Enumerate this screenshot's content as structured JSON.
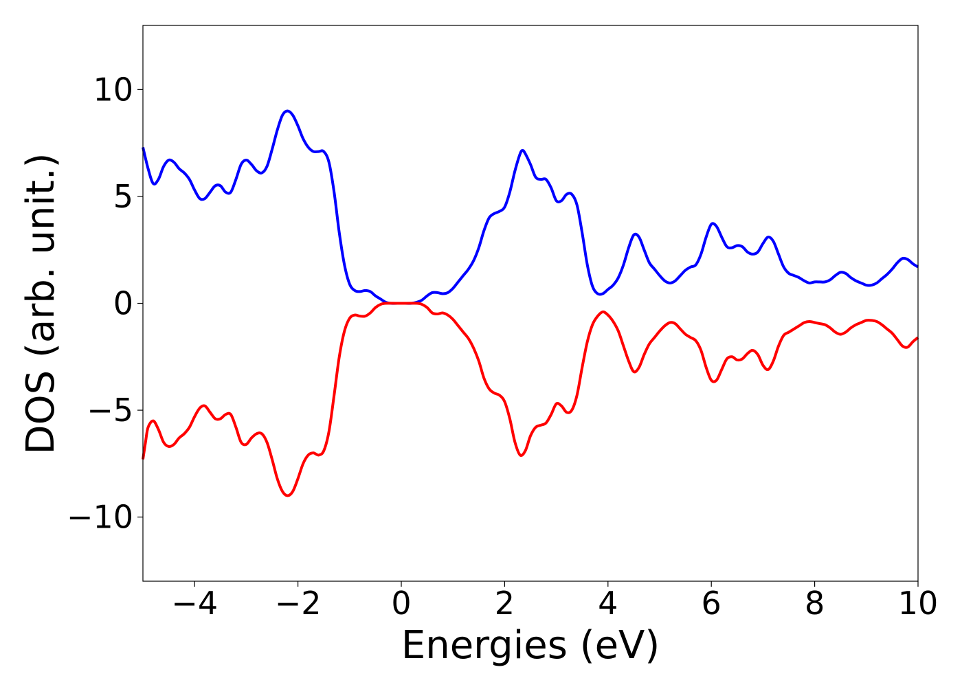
{
  "chart_data": {
    "type": "line",
    "xlabel": "Energies (eV)",
    "ylabel": "DOS (arb. unit.)",
    "xlim": [
      -5,
      10
    ],
    "ylim": [
      -13,
      13
    ],
    "x_ticks": [
      -4,
      -2,
      0,
      2,
      4,
      6,
      8,
      10
    ],
    "y_ticks": [
      -10,
      -5,
      0,
      5,
      10
    ],
    "x_tick_labels": [
      "−4",
      "−2",
      "0",
      "2",
      "4",
      "6",
      "8",
      "10"
    ],
    "y_tick_labels": [
      "−10",
      "−5",
      "0",
      "5",
      "10"
    ],
    "grid": false,
    "series": [
      {
        "color": "#0000ff",
        "points": [
          [
            -5.0,
            7.3
          ],
          [
            -4.9,
            6.3
          ],
          [
            -4.8,
            5.6
          ],
          [
            -4.7,
            5.8
          ],
          [
            -4.6,
            6.4
          ],
          [
            -4.5,
            6.7
          ],
          [
            -4.4,
            6.6
          ],
          [
            -4.3,
            6.3
          ],
          [
            -4.2,
            6.1
          ],
          [
            -4.1,
            5.8
          ],
          [
            -4.0,
            5.3
          ],
          [
            -3.9,
            4.9
          ],
          [
            -3.8,
            4.9
          ],
          [
            -3.7,
            5.2
          ],
          [
            -3.6,
            5.5
          ],
          [
            -3.5,
            5.5
          ],
          [
            -3.4,
            5.2
          ],
          [
            -3.3,
            5.2
          ],
          [
            -3.2,
            5.8
          ],
          [
            -3.1,
            6.5
          ],
          [
            -3.0,
            6.7
          ],
          [
            -2.9,
            6.5
          ],
          [
            -2.8,
            6.2
          ],
          [
            -2.7,
            6.1
          ],
          [
            -2.6,
            6.4
          ],
          [
            -2.5,
            7.2
          ],
          [
            -2.4,
            8.1
          ],
          [
            -2.3,
            8.8
          ],
          [
            -2.2,
            9.0
          ],
          [
            -2.1,
            8.8
          ],
          [
            -2.0,
            8.3
          ],
          [
            -1.9,
            7.7
          ],
          [
            -1.8,
            7.3
          ],
          [
            -1.7,
            7.1
          ],
          [
            -1.6,
            7.1
          ],
          [
            -1.5,
            7.1
          ],
          [
            -1.4,
            6.6
          ],
          [
            -1.3,
            5.2
          ],
          [
            -1.2,
            3.3
          ],
          [
            -1.1,
            1.8
          ],
          [
            -1.0,
            0.9
          ],
          [
            -0.9,
            0.6
          ],
          [
            -0.8,
            0.55
          ],
          [
            -0.7,
            0.6
          ],
          [
            -0.6,
            0.55
          ],
          [
            -0.5,
            0.35
          ],
          [
            -0.4,
            0.2
          ],
          [
            -0.3,
            0.05
          ],
          [
            -0.2,
            0.0
          ],
          [
            0.0,
            0.0
          ],
          [
            0.2,
            0.0
          ],
          [
            0.3,
            0.05
          ],
          [
            0.4,
            0.15
          ],
          [
            0.5,
            0.35
          ],
          [
            0.6,
            0.5
          ],
          [
            0.7,
            0.5
          ],
          [
            0.8,
            0.45
          ],
          [
            0.9,
            0.5
          ],
          [
            1.0,
            0.7
          ],
          [
            1.1,
            1.0
          ],
          [
            1.2,
            1.3
          ],
          [
            1.3,
            1.6
          ],
          [
            1.4,
            2.0
          ],
          [
            1.5,
            2.6
          ],
          [
            1.6,
            3.4
          ],
          [
            1.7,
            4.0
          ],
          [
            1.8,
            4.2
          ],
          [
            1.9,
            4.3
          ],
          [
            2.0,
            4.5
          ],
          [
            2.1,
            5.2
          ],
          [
            2.2,
            6.2
          ],
          [
            2.3,
            7.0
          ],
          [
            2.35,
            7.15
          ],
          [
            2.4,
            7.0
          ],
          [
            2.5,
            6.5
          ],
          [
            2.6,
            5.9
          ],
          [
            2.7,
            5.8
          ],
          [
            2.8,
            5.8
          ],
          [
            2.9,
            5.4
          ],
          [
            3.0,
            4.8
          ],
          [
            3.1,
            4.8
          ],
          [
            3.2,
            5.1
          ],
          [
            3.3,
            5.1
          ],
          [
            3.4,
            4.6
          ],
          [
            3.5,
            3.3
          ],
          [
            3.6,
            1.8
          ],
          [
            3.7,
            0.8
          ],
          [
            3.8,
            0.45
          ],
          [
            3.9,
            0.45
          ],
          [
            4.0,
            0.65
          ],
          [
            4.1,
            0.85
          ],
          [
            4.2,
            1.2
          ],
          [
            4.3,
            1.8
          ],
          [
            4.4,
            2.6
          ],
          [
            4.5,
            3.2
          ],
          [
            4.6,
            3.1
          ],
          [
            4.7,
            2.5
          ],
          [
            4.8,
            1.9
          ],
          [
            4.9,
            1.6
          ],
          [
            5.0,
            1.3
          ],
          [
            5.1,
            1.05
          ],
          [
            5.2,
            0.95
          ],
          [
            5.3,
            1.05
          ],
          [
            5.4,
            1.3
          ],
          [
            5.5,
            1.55
          ],
          [
            5.6,
            1.7
          ],
          [
            5.7,
            1.8
          ],
          [
            5.8,
            2.3
          ],
          [
            5.9,
            3.1
          ],
          [
            6.0,
            3.7
          ],
          [
            6.1,
            3.6
          ],
          [
            6.2,
            3.1
          ],
          [
            6.3,
            2.65
          ],
          [
            6.4,
            2.6
          ],
          [
            6.5,
            2.7
          ],
          [
            6.6,
            2.65
          ],
          [
            6.7,
            2.4
          ],
          [
            6.8,
            2.3
          ],
          [
            6.9,
            2.4
          ],
          [
            7.0,
            2.8
          ],
          [
            7.1,
            3.1
          ],
          [
            7.2,
            2.9
          ],
          [
            7.3,
            2.3
          ],
          [
            7.4,
            1.7
          ],
          [
            7.5,
            1.4
          ],
          [
            7.6,
            1.3
          ],
          [
            7.7,
            1.2
          ],
          [
            7.8,
            1.05
          ],
          [
            7.9,
            0.95
          ],
          [
            8.0,
            1.0
          ],
          [
            8.1,
            1.0
          ],
          [
            8.2,
            1.0
          ],
          [
            8.3,
            1.1
          ],
          [
            8.4,
            1.3
          ],
          [
            8.5,
            1.45
          ],
          [
            8.6,
            1.4
          ],
          [
            8.7,
            1.2
          ],
          [
            8.8,
            1.05
          ],
          [
            8.9,
            0.95
          ],
          [
            9.0,
            0.85
          ],
          [
            9.1,
            0.85
          ],
          [
            9.2,
            0.95
          ],
          [
            9.3,
            1.15
          ],
          [
            9.4,
            1.35
          ],
          [
            9.5,
            1.6
          ],
          [
            9.6,
            1.9
          ],
          [
            9.7,
            2.1
          ],
          [
            9.8,
            2.05
          ],
          [
            9.9,
            1.85
          ],
          [
            10.0,
            1.7
          ]
        ]
      },
      {
        "color": "#ff0000",
        "points": [
          [
            -5.0,
            -7.3
          ],
          [
            -4.95,
            -6.5
          ],
          [
            -4.9,
            -5.8
          ],
          [
            -4.8,
            -5.5
          ],
          [
            -4.7,
            -5.9
          ],
          [
            -4.6,
            -6.5
          ],
          [
            -4.5,
            -6.7
          ],
          [
            -4.4,
            -6.6
          ],
          [
            -4.3,
            -6.3
          ],
          [
            -4.2,
            -6.1
          ],
          [
            -4.1,
            -5.8
          ],
          [
            -4.0,
            -5.3
          ],
          [
            -3.9,
            -4.9
          ],
          [
            -3.8,
            -4.8
          ],
          [
            -3.7,
            -5.1
          ],
          [
            -3.6,
            -5.4
          ],
          [
            -3.5,
            -5.4
          ],
          [
            -3.4,
            -5.2
          ],
          [
            -3.3,
            -5.2
          ],
          [
            -3.2,
            -5.8
          ],
          [
            -3.1,
            -6.5
          ],
          [
            -3.0,
            -6.6
          ],
          [
            -2.9,
            -6.3
          ],
          [
            -2.8,
            -6.1
          ],
          [
            -2.7,
            -6.1
          ],
          [
            -2.6,
            -6.5
          ],
          [
            -2.5,
            -7.3
          ],
          [
            -2.4,
            -8.2
          ],
          [
            -2.3,
            -8.8
          ],
          [
            -2.2,
            -9.0
          ],
          [
            -2.1,
            -8.8
          ],
          [
            -2.0,
            -8.2
          ],
          [
            -1.9,
            -7.5
          ],
          [
            -1.8,
            -7.1
          ],
          [
            -1.7,
            -7.0
          ],
          [
            -1.6,
            -7.1
          ],
          [
            -1.5,
            -6.9
          ],
          [
            -1.4,
            -6.0
          ],
          [
            -1.3,
            -4.3
          ],
          [
            -1.2,
            -2.5
          ],
          [
            -1.1,
            -1.3
          ],
          [
            -1.0,
            -0.7
          ],
          [
            -0.9,
            -0.55
          ],
          [
            -0.8,
            -0.6
          ],
          [
            -0.7,
            -0.6
          ],
          [
            -0.6,
            -0.45
          ],
          [
            -0.5,
            -0.2
          ],
          [
            -0.4,
            -0.05
          ],
          [
            -0.3,
            0.0
          ],
          [
            0.0,
            0.0
          ],
          [
            0.3,
            0.0
          ],
          [
            0.4,
            -0.05
          ],
          [
            0.5,
            -0.2
          ],
          [
            0.6,
            -0.45
          ],
          [
            0.7,
            -0.5
          ],
          [
            0.8,
            -0.45
          ],
          [
            0.9,
            -0.55
          ],
          [
            1.0,
            -0.75
          ],
          [
            1.1,
            -1.05
          ],
          [
            1.2,
            -1.35
          ],
          [
            1.3,
            -1.65
          ],
          [
            1.4,
            -2.1
          ],
          [
            1.5,
            -2.7
          ],
          [
            1.6,
            -3.5
          ],
          [
            1.7,
            -4.0
          ],
          [
            1.8,
            -4.2
          ],
          [
            1.9,
            -4.3
          ],
          [
            2.0,
            -4.6
          ],
          [
            2.1,
            -5.4
          ],
          [
            2.2,
            -6.5
          ],
          [
            2.3,
            -7.1
          ],
          [
            2.4,
            -6.9
          ],
          [
            2.5,
            -6.2
          ],
          [
            2.6,
            -5.8
          ],
          [
            2.7,
            -5.7
          ],
          [
            2.8,
            -5.6
          ],
          [
            2.9,
            -5.2
          ],
          [
            3.0,
            -4.7
          ],
          [
            3.1,
            -4.8
          ],
          [
            3.2,
            -5.1
          ],
          [
            3.3,
            -5.0
          ],
          [
            3.4,
            -4.3
          ],
          [
            3.5,
            -3.0
          ],
          [
            3.6,
            -1.8
          ],
          [
            3.7,
            -1.0
          ],
          [
            3.8,
            -0.6
          ],
          [
            3.9,
            -0.4
          ],
          [
            4.0,
            -0.55
          ],
          [
            4.1,
            -0.85
          ],
          [
            4.2,
            -1.3
          ],
          [
            4.3,
            -2.0
          ],
          [
            4.4,
            -2.7
          ],
          [
            4.5,
            -3.2
          ],
          [
            4.6,
            -3.0
          ],
          [
            4.7,
            -2.4
          ],
          [
            4.8,
            -1.9
          ],
          [
            4.9,
            -1.6
          ],
          [
            5.0,
            -1.3
          ],
          [
            5.1,
            -1.05
          ],
          [
            5.2,
            -0.9
          ],
          [
            5.3,
            -0.95
          ],
          [
            5.4,
            -1.2
          ],
          [
            5.5,
            -1.45
          ],
          [
            5.6,
            -1.6
          ],
          [
            5.7,
            -1.75
          ],
          [
            5.8,
            -2.2
          ],
          [
            5.9,
            -3.0
          ],
          [
            6.0,
            -3.6
          ],
          [
            6.1,
            -3.6
          ],
          [
            6.2,
            -3.1
          ],
          [
            6.3,
            -2.6
          ],
          [
            6.4,
            -2.5
          ],
          [
            6.5,
            -2.65
          ],
          [
            6.6,
            -2.6
          ],
          [
            6.7,
            -2.35
          ],
          [
            6.8,
            -2.2
          ],
          [
            6.9,
            -2.4
          ],
          [
            7.0,
            -2.9
          ],
          [
            7.1,
            -3.1
          ],
          [
            7.2,
            -2.7
          ],
          [
            7.3,
            -2.0
          ],
          [
            7.4,
            -1.5
          ],
          [
            7.5,
            -1.35
          ],
          [
            7.6,
            -1.2
          ],
          [
            7.7,
            -1.05
          ],
          [
            7.8,
            -0.9
          ],
          [
            7.9,
            -0.85
          ],
          [
            8.0,
            -0.9
          ],
          [
            8.1,
            -0.95
          ],
          [
            8.2,
            -1.0
          ],
          [
            8.3,
            -1.15
          ],
          [
            8.4,
            -1.35
          ],
          [
            8.5,
            -1.45
          ],
          [
            8.6,
            -1.35
          ],
          [
            8.7,
            -1.15
          ],
          [
            8.8,
            -1.0
          ],
          [
            8.9,
            -0.9
          ],
          [
            9.0,
            -0.8
          ],
          [
            9.1,
            -0.8
          ],
          [
            9.2,
            -0.85
          ],
          [
            9.3,
            -1.0
          ],
          [
            9.4,
            -1.2
          ],
          [
            9.5,
            -1.4
          ],
          [
            9.6,
            -1.7
          ],
          [
            9.7,
            -2.0
          ],
          [
            9.8,
            -2.05
          ],
          [
            9.9,
            -1.8
          ],
          [
            10.0,
            -1.6
          ]
        ]
      }
    ]
  }
}
